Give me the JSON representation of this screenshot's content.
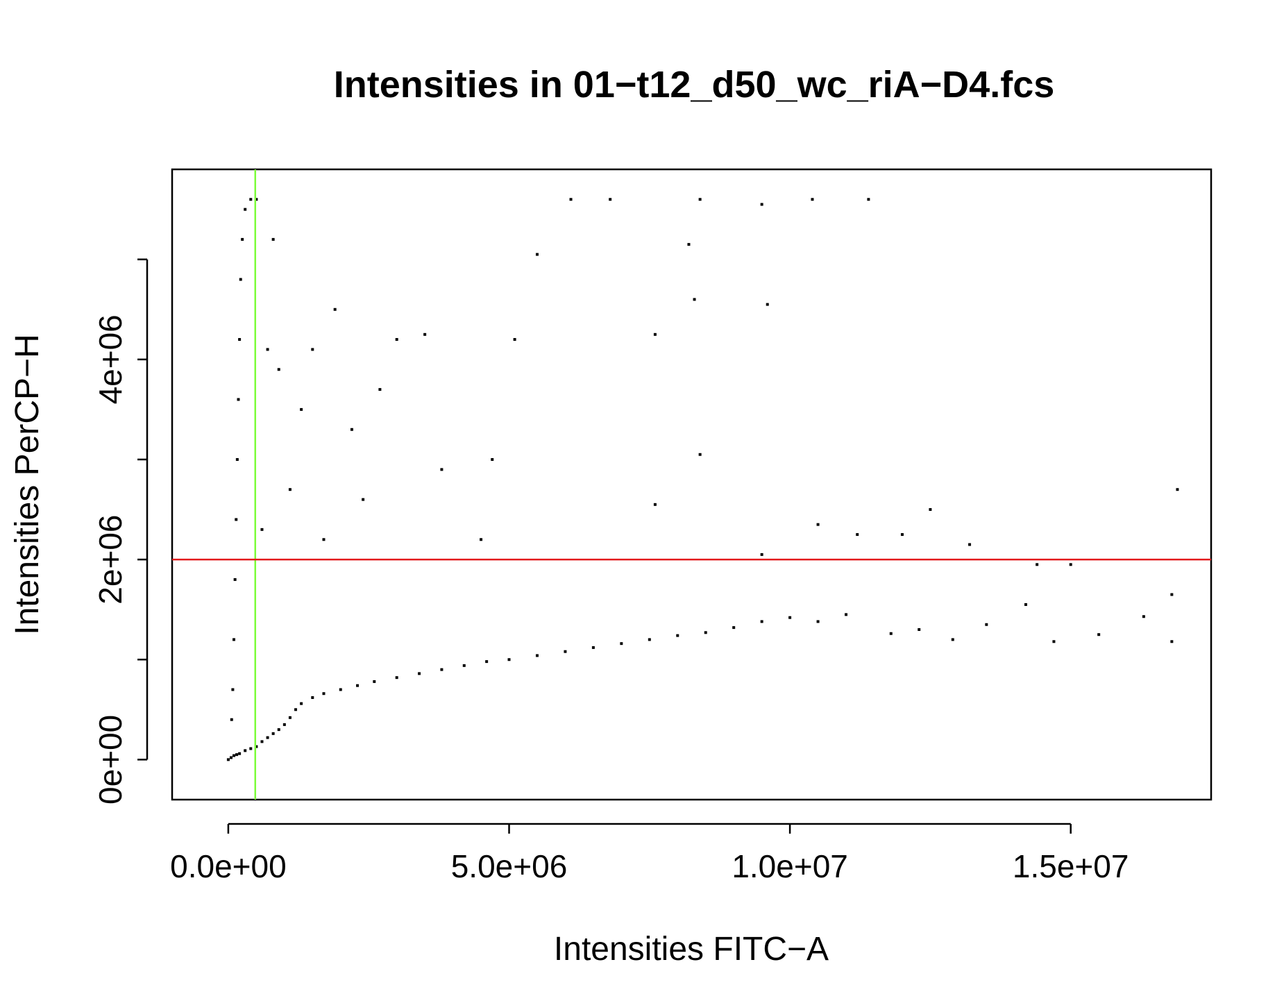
{
  "chart_data": {
    "type": "scatter",
    "title": "Intensities in 01−t12_d50_wc_riA−D4.fcs",
    "xlabel": "Intensities FITC−A",
    "ylabel": "Intensities PerCP−H",
    "xlim": [
      -1000000,
      17500000
    ],
    "ylim": [
      -400000,
      5900000
    ],
    "x_ticks": [
      {
        "value": 0,
        "label": "0.0e+00"
      },
      {
        "value": 5000000,
        "label": "5.0e+06"
      },
      {
        "value": 10000000,
        "label": "1.0e+07"
      },
      {
        "value": 15000000,
        "label": "1.5e+07"
      }
    ],
    "y_ticks": [
      {
        "value": 0,
        "label": "0e+00"
      },
      {
        "value": 1000000,
        "label": ""
      },
      {
        "value": 2000000,
        "label": "2e+06"
      },
      {
        "value": 3000000,
        "label": ""
      },
      {
        "value": 4000000,
        "label": "4e+06"
      },
      {
        "value": 5000000,
        "label": ""
      }
    ],
    "reference_lines": [
      {
        "orientation": "vertical",
        "value": 480000,
        "color": "#7cfc3a"
      },
      {
        "orientation": "horizontal",
        "value": 2000000,
        "color": "#e31a1c"
      }
    ],
    "point_color": "#000000",
    "grid": false,
    "legend": "none",
    "series": [
      {
        "points": [
          [
            0,
            0
          ],
          [
            50000,
            20000
          ],
          [
            100000,
            40000
          ],
          [
            150000,
            50000
          ],
          [
            200000,
            60000
          ],
          [
            300000,
            90000
          ],
          [
            400000,
            110000
          ],
          [
            500000,
            130000
          ],
          [
            600000,
            180000
          ],
          [
            700000,
            220000
          ],
          [
            800000,
            260000
          ],
          [
            900000,
            300000
          ],
          [
            1000000,
            350000
          ],
          [
            1100000,
            420000
          ],
          [
            1200000,
            500000
          ],
          [
            1300000,
            560000
          ],
          [
            1500000,
            620000
          ],
          [
            1700000,
            660000
          ],
          [
            2000000,
            700000
          ],
          [
            2300000,
            740000
          ],
          [
            2600000,
            780000
          ],
          [
            3000000,
            820000
          ],
          [
            3400000,
            860000
          ],
          [
            3800000,
            900000
          ],
          [
            4200000,
            940000
          ],
          [
            4600000,
            980000
          ],
          [
            5000000,
            1000000
          ],
          [
            5500000,
            1040000
          ],
          [
            6000000,
            1080000
          ],
          [
            6500000,
            1120000
          ],
          [
            7000000,
            1160000
          ],
          [
            7500000,
            1200000
          ],
          [
            8000000,
            1240000
          ],
          [
            8500000,
            1270000
          ],
          [
            9000000,
            1320000
          ],
          [
            9500000,
            1380000
          ],
          [
            10000000,
            1420000
          ],
          [
            10500000,
            1380000
          ],
          [
            11000000,
            1450000
          ],
          [
            11800000,
            1260000
          ],
          [
            12300000,
            1300000
          ],
          [
            12900000,
            1200000
          ],
          [
            13500000,
            1350000
          ],
          [
            14200000,
            1550000
          ],
          [
            14700000,
            1180000
          ],
          [
            15500000,
            1250000
          ],
          [
            16300000,
            1430000
          ],
          [
            16800000,
            1180000
          ],
          [
            16800000,
            1650000
          ],
          [
            16900000,
            2700000
          ],
          [
            15000000,
            1950000
          ],
          [
            14400000,
            1950000
          ],
          [
            13200000,
            2150000
          ],
          [
            12500000,
            2500000
          ],
          [
            12000000,
            2250000
          ],
          [
            11200000,
            2250000
          ],
          [
            10500000,
            2350000
          ],
          [
            9500000,
            2050000
          ],
          [
            8400000,
            3050000
          ],
          [
            8200000,
            5150000
          ],
          [
            8300000,
            4600000
          ],
          [
            7600000,
            2550000
          ],
          [
            7600000,
            4250000
          ],
          [
            9600000,
            4550000
          ],
          [
            11400000,
            5600000
          ],
          [
            10400000,
            5600000
          ],
          [
            9500000,
            5550000
          ],
          [
            8400000,
            5600000
          ],
          [
            6800000,
            5600000
          ],
          [
            6100000,
            5600000
          ],
          [
            5500000,
            5050000
          ],
          [
            5100000,
            4200000
          ],
          [
            4700000,
            3000000
          ],
          [
            4500000,
            2200000
          ],
          [
            3800000,
            2900000
          ],
          [
            3500000,
            4250000
          ],
          [
            3000000,
            4200000
          ],
          [
            2700000,
            3700000
          ],
          [
            2400000,
            2600000
          ],
          [
            2200000,
            3300000
          ],
          [
            1900000,
            4500000
          ],
          [
            1700000,
            2200000
          ],
          [
            1500000,
            4100000
          ],
          [
            1300000,
            3500000
          ],
          [
            1100000,
            2700000
          ],
          [
            900000,
            3900000
          ],
          [
            800000,
            5200000
          ],
          [
            700000,
            4100000
          ],
          [
            600000,
            2300000
          ],
          [
            500000,
            5600000
          ],
          [
            400000,
            5600000
          ],
          [
            300000,
            5500000
          ],
          [
            250000,
            5200000
          ],
          [
            220000,
            4800000
          ],
          [
            200000,
            4200000
          ],
          [
            180000,
            3600000
          ],
          [
            160000,
            3000000
          ],
          [
            140000,
            2400000
          ],
          [
            120000,
            1800000
          ],
          [
            100000,
            1200000
          ],
          [
            80000,
            700000
          ],
          [
            60000,
            400000
          ]
        ]
      }
    ]
  }
}
